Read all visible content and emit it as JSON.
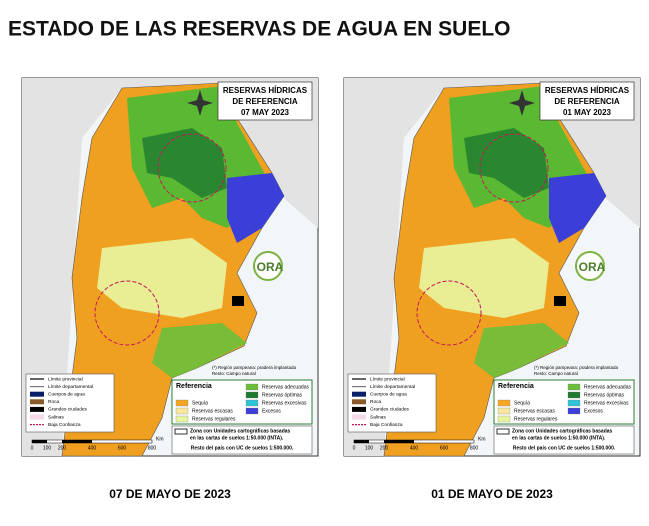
{
  "header": {
    "title": "ESTADO DE LAS RESERVAS DE AGUA EN SUELO"
  },
  "maps": [
    {
      "title": [
        "RESERVAS HÍDRICAS",
        "DE REFERENCIA",
        "07 MAY 2023"
      ],
      "logo": "ORA",
      "note": [
        "(*) Región pampeana: pradera implantada",
        "Resto: Campo natural"
      ],
      "base_legend": [
        "Límite provincial",
        "Límite departamental",
        "Cuerpos de agua",
        "Roca",
        "Grandes ciudades",
        "Salinas",
        "Baja Confianza"
      ],
      "reference": {
        "title": "Referencia",
        "items": [
          "Sequía",
          "Reservas escasas",
          "Reservas regulares",
          "Reservas adecuadas",
          "Reservas óptimas",
          "Reservas excesivas",
          "Excesos"
        ]
      },
      "zone": [
        "Zona con Unidades cartográficas basadas",
        "en las cartas de suelos 1:50.000 (INTA)."
      ],
      "rest": "Resto del país con UC de suelos 1:500.000.",
      "scale": {
        "labels": [
          "0",
          "100",
          "200",
          "400",
          "600",
          "800"
        ],
        "unit": "Km"
      },
      "caption": "07 DE MAYO DE 2023"
    },
    {
      "title": [
        "RESERVAS HÍDRICAS",
        "DE REFERENCIA",
        "01 MAY 2023"
      ],
      "logo": "ORA",
      "note": [
        "(*) Región pampeana: pradera implantada",
        "Resto: Campo natural"
      ],
      "base_legend": [
        "Límite provincial",
        "Límite departamental",
        "Cuerpos de agua",
        "Roca",
        "Grandes ciudades",
        "Salinas",
        "Baja Confianza"
      ],
      "reference": {
        "title": "Referencia",
        "items": [
          "Sequía",
          "Reservas escasas",
          "Reservas regulares",
          "Reservas adecuadas",
          "Reservas óptimas",
          "Reservas excesivas",
          "Excesos"
        ]
      },
      "zone": [
        "Zona con Unidades cartográficas basadas",
        "en las cartas de suelos 1:50.000 (INTA)."
      ],
      "rest": "Resto del país con UC de suelos 1:500.000.",
      "scale": {
        "labels": [
          "0",
          "100",
          "200",
          "400",
          "600",
          "800"
        ],
        "unit": "Km"
      },
      "caption": "01 DE MAYO DE 2023"
    }
  ]
}
